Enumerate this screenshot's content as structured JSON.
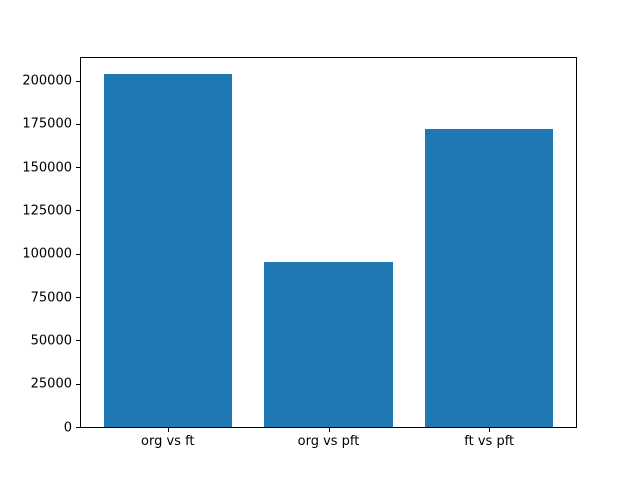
{
  "figure": {
    "background": "#ffffff"
  },
  "chart_data": {
    "type": "bar",
    "categories": [
      "org vs ft",
      "org vs pft",
      "ft vs pft"
    ],
    "values": [
      204000,
      95000,
      172000
    ],
    "title": "",
    "xlabel": "",
    "ylabel": "",
    "ylim": [
      0,
      213000
    ],
    "yticks": [
      0,
      25000,
      50000,
      75000,
      100000,
      125000,
      150000,
      175000,
      200000
    ],
    "bar_color": "#1f77b4",
    "bar_width_fraction": 0.8,
    "grid": false,
    "legend": "none"
  }
}
